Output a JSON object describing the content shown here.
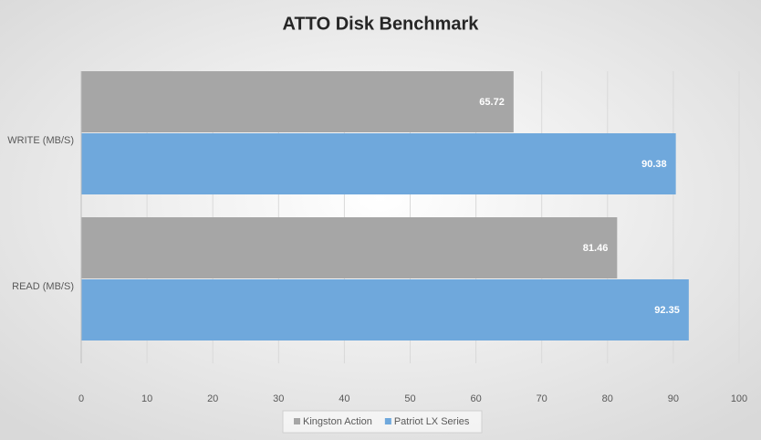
{
  "chart_data": {
    "type": "bar",
    "orientation": "horizontal",
    "title": "ATTO Disk Benchmark",
    "categories": [
      "WRITE (MB/S)",
      "READ (MB/S)"
    ],
    "series": [
      {
        "name": "Kingston Action",
        "color": "#a6a6a6",
        "values": [
          65.72,
          81.46
        ]
      },
      {
        "name": "Patriot LX Series",
        "color": "#6fa8dc",
        "values": [
          90.38,
          92.35
        ]
      }
    ],
    "xlim": [
      0,
      100
    ],
    "xticks": [
      0,
      10,
      20,
      30,
      40,
      50,
      60,
      70,
      80,
      90,
      100
    ],
    "grid": true,
    "legend": "bottom"
  }
}
